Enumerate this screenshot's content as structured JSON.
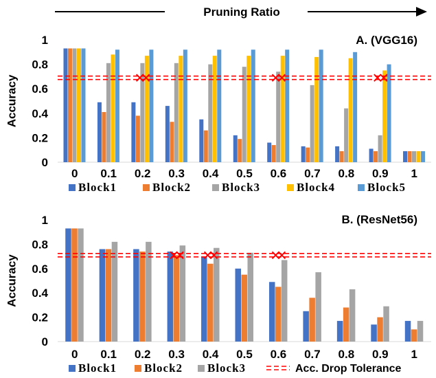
{
  "header": {
    "label": "Pruning Ratio"
  },
  "chart_data": [
    {
      "type": "bar",
      "title": "A. (VGG16)",
      "ylabel": "Accuracy",
      "ylim": [
        0,
        1
      ],
      "yticks": [
        "0",
        "0.2",
        "0.4",
        "0.6",
        "0.8",
        "1"
      ],
      "categories": [
        "0",
        "0.1",
        "0.2",
        "0.3",
        "0.4",
        "0.5",
        "0.6",
        "0.7",
        "0.8",
        "0.9",
        "1"
      ],
      "series": [
        {
          "name": "Block1",
          "color": "#4472C4",
          "values": [
            0.93,
            0.49,
            0.49,
            0.46,
            0.35,
            0.22,
            0.16,
            0.13,
            0.13,
            0.11,
            0.09
          ]
        },
        {
          "name": "Block2",
          "color": "#ED7D31",
          "values": [
            0.93,
            0.41,
            0.38,
            0.33,
            0.26,
            0.19,
            0.14,
            0.12,
            0.09,
            0.09,
            0.09
          ]
        },
        {
          "name": "Block3",
          "color": "#A5A5A5",
          "values": [
            0.93,
            0.81,
            0.81,
            0.81,
            0.8,
            0.78,
            0.74,
            0.63,
            0.44,
            0.22,
            0.09
          ]
        },
        {
          "name": "Block4",
          "color": "#FFC000",
          "values": [
            0.93,
            0.88,
            0.87,
            0.87,
            0.87,
            0.87,
            0.87,
            0.86,
            0.85,
            0.75,
            0.09
          ]
        },
        {
          "name": "Block5",
          "color": "#5B9BD5",
          "values": [
            0.93,
            0.92,
            0.92,
            0.92,
            0.92,
            0.92,
            0.92,
            0.92,
            0.9,
            0.8,
            0.09
          ]
        }
      ],
      "tolerance": 0.69,
      "crossings": [
        0.2,
        0.6,
        0.9
      ],
      "legend": [
        "Block1",
        "Block2",
        "Block3",
        "Block4",
        "Block5"
      ]
    },
    {
      "type": "bar",
      "title": "B. (ResNet56)",
      "ylabel": "Accuracy",
      "ylim": [
        0,
        1
      ],
      "yticks": [
        "0",
        "0.2",
        "0.4",
        "0.6",
        "0.8",
        "1"
      ],
      "categories": [
        "0",
        "0.1",
        "0.2",
        "0.3",
        "0.4",
        "0.5",
        "0.6",
        "0.7",
        "0.8",
        "0.9",
        "1"
      ],
      "series": [
        {
          "name": "Block1",
          "color": "#4472C4",
          "values": [
            0.93,
            0.76,
            0.76,
            0.74,
            0.7,
            0.6,
            0.49,
            0.25,
            0.17,
            0.14,
            0.17
          ]
        },
        {
          "name": "Block2",
          "color": "#ED7D31",
          "values": [
            0.93,
            0.76,
            0.74,
            0.71,
            0.64,
            0.55,
            0.45,
            0.36,
            0.28,
            0.2,
            0.1
          ]
        },
        {
          "name": "Block3",
          "color": "#A5A5A5",
          "values": [
            0.93,
            0.82,
            0.82,
            0.79,
            0.77,
            0.73,
            0.67,
            0.57,
            0.43,
            0.29,
            0.17
          ]
        }
      ],
      "tolerance": 0.71,
      "crossings": [
        0.3,
        0.4,
        0.6
      ],
      "legend": [
        "Block1",
        "Block2",
        "Block3"
      ],
      "tolerance_label": "Acc. Drop Tolerance"
    }
  ]
}
